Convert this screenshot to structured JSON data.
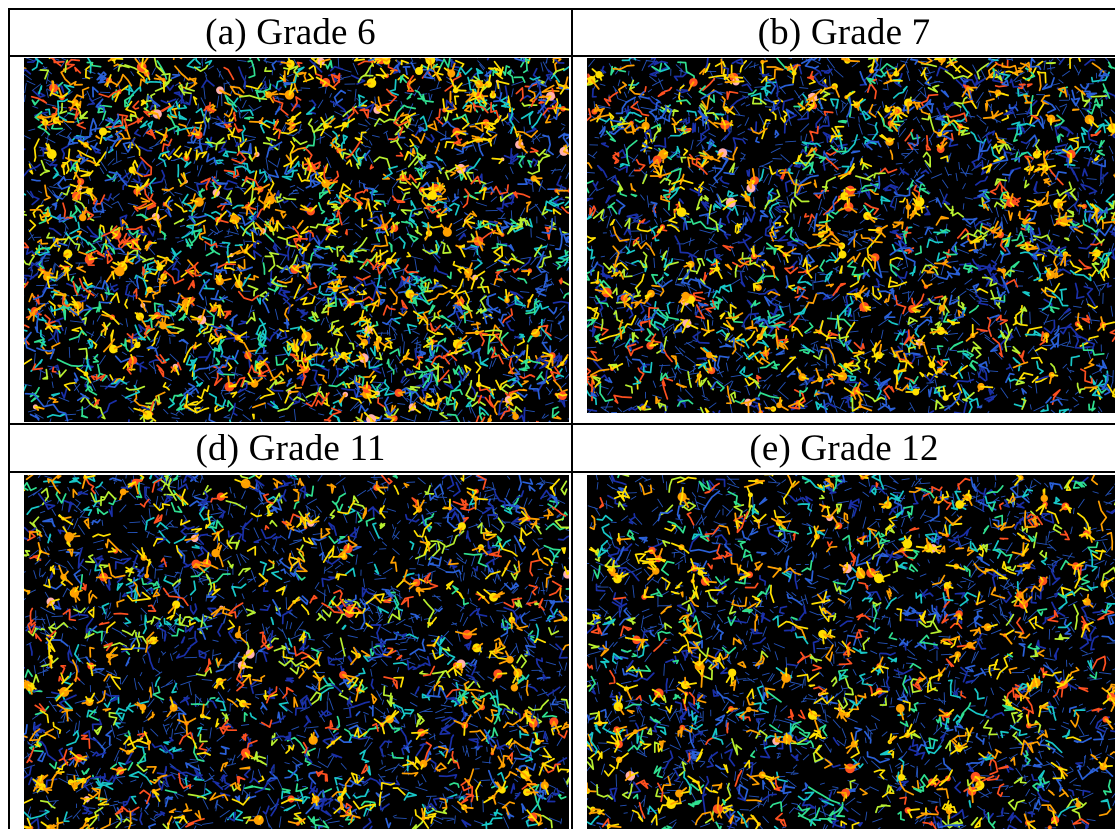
{
  "panels": [
    {
      "id": "a",
      "caption": "(a) Grade 6",
      "density": 1.0,
      "warmth": 0.78,
      "seed": 11
    },
    {
      "id": "b",
      "caption": "(b) Grade 7",
      "density": 0.82,
      "warmth": 0.45,
      "seed": 23
    },
    {
      "id": "d",
      "caption": "(d) Grade 11",
      "density": 0.7,
      "warmth": 0.32,
      "seed": 37
    },
    {
      "id": "e",
      "caption": "(e) Grade 12",
      "density": 0.6,
      "warmth": 0.4,
      "seed": 53
    }
  ],
  "palette": [
    "#1a2fa8",
    "#2a60d8",
    "#18c8c8",
    "#30e090",
    "#b8f030",
    "#ffe000",
    "#ffa000",
    "#ff5020",
    "#ffb0b0"
  ]
}
